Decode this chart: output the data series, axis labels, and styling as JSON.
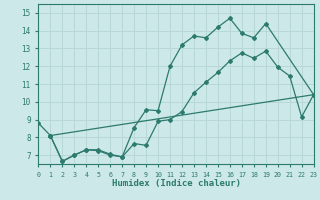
{
  "xlabel": "Humidex (Indice chaleur)",
  "xlim": [
    0,
    23
  ],
  "ylim": [
    6.5,
    15.5
  ],
  "yticks": [
    7,
    8,
    9,
    10,
    11,
    12,
    13,
    14,
    15
  ],
  "xticks": [
    0,
    1,
    2,
    3,
    4,
    5,
    6,
    7,
    8,
    9,
    10,
    11,
    12,
    13,
    14,
    15,
    16,
    17,
    18,
    19,
    20,
    21,
    22,
    23
  ],
  "bg_color": "#cce8e8",
  "grid_color": "#b8d8d8",
  "line_color": "#2d7a6e",
  "line1_x": [
    0,
    1,
    2,
    3,
    4,
    5,
    6,
    7,
    8,
    9,
    10,
    11,
    12,
    13,
    14,
    15,
    16,
    17,
    18,
    19,
    23
  ],
  "line1_y": [
    8.8,
    8.1,
    6.65,
    7.0,
    7.3,
    7.3,
    7.05,
    6.9,
    8.55,
    9.55,
    9.5,
    12.0,
    13.2,
    13.7,
    13.6,
    14.2,
    14.7,
    13.85,
    13.6,
    14.4,
    10.4
  ],
  "line2_x": [
    1,
    2,
    3,
    4,
    5,
    6,
    7,
    8,
    9,
    10,
    11,
    12,
    13,
    14,
    15,
    16,
    17,
    18,
    19,
    20,
    21,
    22,
    23
  ],
  "line2_y": [
    8.1,
    6.65,
    7.0,
    7.3,
    7.25,
    7.0,
    6.9,
    7.65,
    7.55,
    8.9,
    9.0,
    9.45,
    10.5,
    11.1,
    11.65,
    12.3,
    12.75,
    12.45,
    12.85,
    11.95,
    11.45,
    9.15,
    10.4
  ],
  "line3_x": [
    1,
    23
  ],
  "line3_y": [
    8.1,
    10.4
  ]
}
